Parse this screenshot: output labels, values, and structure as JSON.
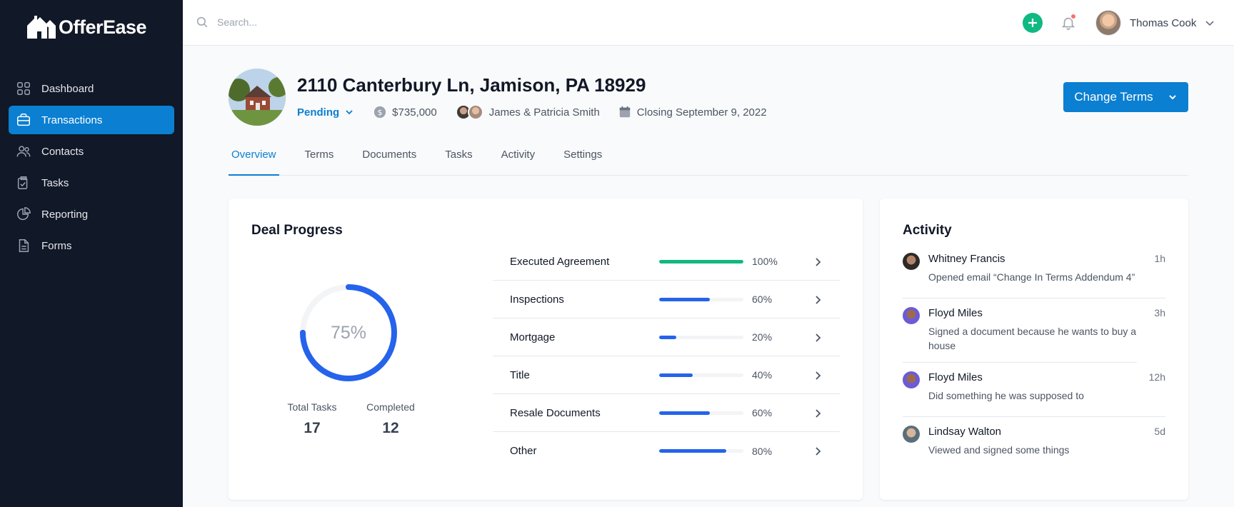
{
  "app": {
    "name": "OfferEase"
  },
  "sidebar": {
    "items": [
      {
        "label": "Dashboard",
        "icon": "grid-icon"
      },
      {
        "label": "Transactions",
        "icon": "briefcase-icon",
        "active": true
      },
      {
        "label": "Contacts",
        "icon": "users-icon"
      },
      {
        "label": "Tasks",
        "icon": "clipboard-check-icon"
      },
      {
        "label": "Reporting",
        "icon": "pie-chart-icon"
      },
      {
        "label": "Forms",
        "icon": "document-icon"
      }
    ]
  },
  "header": {
    "search_placeholder": "Search...",
    "user_name": "Thomas Cook"
  },
  "property": {
    "address": "2110 Canterbury Ln, Jamison, PA 18929",
    "status": "Pending",
    "price": "$735,000",
    "buyers": "James & Patricia Smith",
    "closing": "Closing September 9, 2022",
    "action_label": "Change Terms"
  },
  "tabs": [
    "Overview",
    "Terms",
    "Documents",
    "Tasks",
    "Activity",
    "Settings"
  ],
  "deal_progress": {
    "title": "Deal Progress",
    "overall_percent": 75,
    "overall_label": "75%",
    "total_tasks_label": "Total Tasks",
    "total_tasks": "17",
    "completed_label": "Completed",
    "completed": "12",
    "items": [
      {
        "name": "Executed Agreement",
        "percent": 100,
        "label": "100%",
        "color": "#10b981"
      },
      {
        "name": "Inspections",
        "percent": 60,
        "label": "60%",
        "color": "#2563eb"
      },
      {
        "name": "Mortgage",
        "percent": 20,
        "label": "20%",
        "color": "#2563eb"
      },
      {
        "name": "Title",
        "percent": 40,
        "label": "40%",
        "color": "#2563eb"
      },
      {
        "name": "Resale Documents",
        "percent": 60,
        "label": "60%",
        "color": "#2563eb"
      },
      {
        "name": "Other",
        "percent": 80,
        "label": "80%",
        "color": "#2563eb"
      }
    ]
  },
  "activity": {
    "title": "Activity",
    "items": [
      {
        "name": "Whitney Francis",
        "time": "1h",
        "text": "Opened email “Change In Terms Addendum 4”"
      },
      {
        "name": "Floyd Miles",
        "time": "3h",
        "text": "Signed a document because he wants to buy a house"
      },
      {
        "name": "Floyd Miles",
        "time": "12h",
        "text": "Did something he was supposed to"
      },
      {
        "name": "Lindsay Walton",
        "time": "5d",
        "text": "Viewed and signed some things"
      }
    ]
  },
  "colors": {
    "brand": "#0b7fd1",
    "sidebar": "#111827",
    "success": "#10b981",
    "progress": "#2563eb",
    "alert": "#f87171"
  }
}
